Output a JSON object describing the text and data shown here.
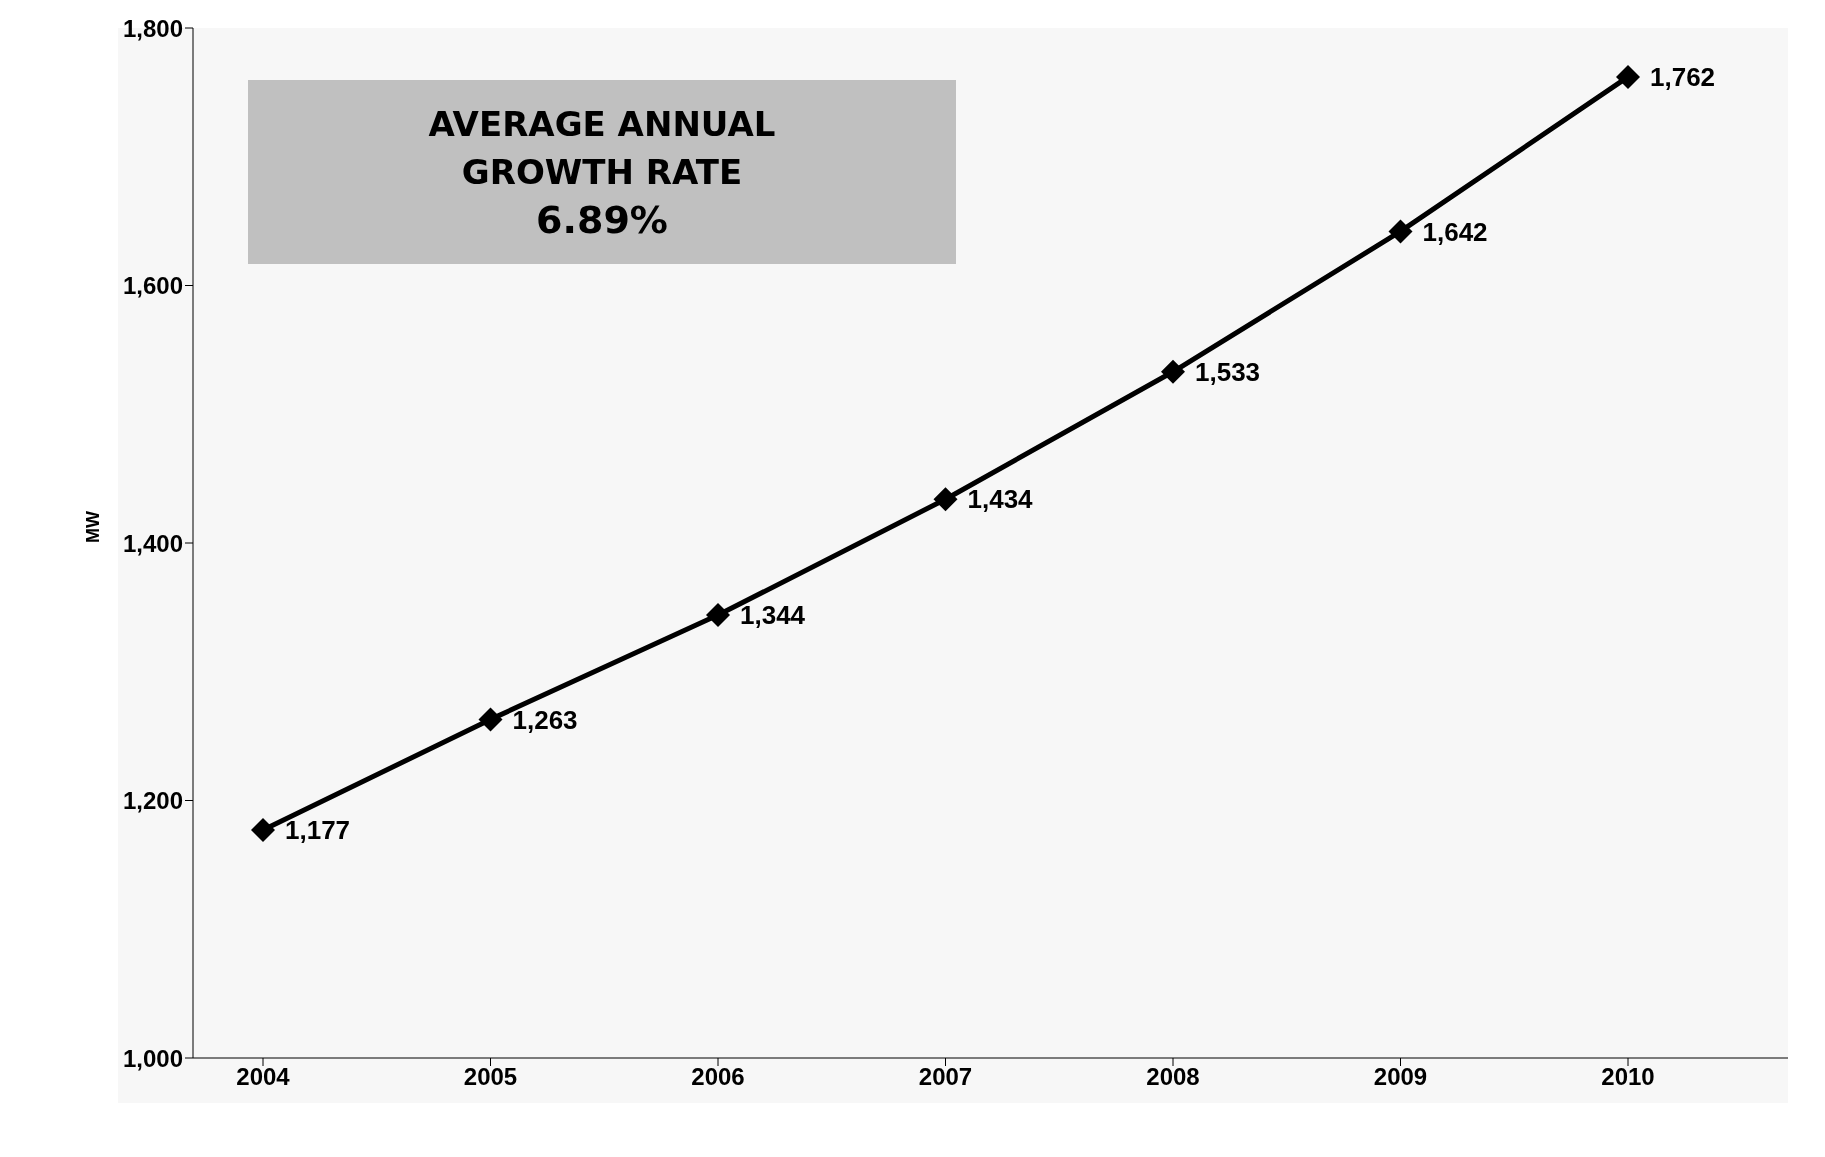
{
  "chart_data": {
    "type": "line",
    "ylabel": "MW",
    "categories": [
      "2004",
      "2005",
      "2006",
      "2007",
      "2008",
      "2009",
      "2010"
    ],
    "series": [
      {
        "color": "#000000",
        "values": [
          1177,
          1263,
          1344,
          1434,
          1533,
          1642,
          1762
        ],
        "value_labels": [
          "1,177",
          "1,263",
          "1,344",
          "1,434",
          "1,533",
          "1,642",
          "1,762"
        ]
      }
    ],
    "ylim": [
      1000,
      1800
    ],
    "yticks": [
      {
        "value": 1000,
        "label": "1,000"
      },
      {
        "value": 1200,
        "label": "1,200"
      },
      {
        "value": 1400,
        "label": "1,400"
      },
      {
        "value": 1600,
        "label": "1,600"
      },
      {
        "value": 1800,
        "label": "1,800"
      }
    ],
    "annotations": [
      "AVERAGE ANNUAL\nGROWTH RATE\n6.89%"
    ],
    "marker": "diamond",
    "line_style": "solid",
    "grid": false,
    "legend": false
  }
}
